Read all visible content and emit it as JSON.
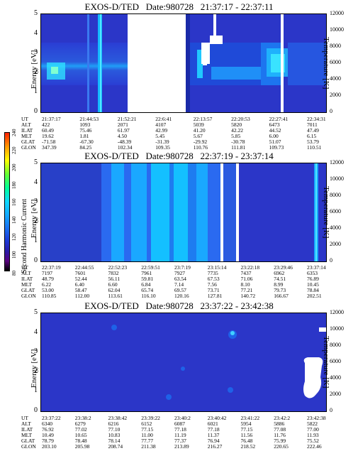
{
  "panels": [
    {
      "title": "EXOS-D/TED   Date:980728   21:37:17 - 22:37:11",
      "ylabel_left": "Energy [eV]",
      "ylabel_right": "Temperature [K]",
      "yticks_left": [
        "5",
        "4",
        "3",
        "2",
        "1",
        "0"
      ],
      "yticks_right": [
        "12000",
        "10000",
        "8000",
        "6000",
        "4000",
        "2000",
        "0"
      ],
      "orbit_rows": [
        "UT",
        "ALT",
        "ILAT",
        "MLT",
        "GLAT",
        "GLON"
      ],
      "orbit_cols": [
        [
          "21:37:17",
          "422",
          "60.49",
          "19.62",
          "-71.58",
          "347.39"
        ],
        [
          "21:44:53",
          "1093",
          "75.46",
          "1.81",
          "-67.30",
          "84.25"
        ],
        [
          "21:52:21",
          "2071",
          "61.97",
          "4.50",
          "-48.39",
          "102.34"
        ],
        [
          "22:6:41",
          "4107",
          "42.99",
          "5.45",
          "-31.39",
          "109.35"
        ],
        [
          "22:13:57",
          "5039",
          "41.20",
          "5.67",
          "-29.92",
          "110.76"
        ],
        [
          "22:20:53",
          "5820",
          "42.22",
          "5.85",
          "-30.78",
          "111.81"
        ],
        [
          "22:27:41",
          "6473",
          "44.52",
          "6.00",
          "51.07",
          "109.73"
        ],
        [
          "22:34:31",
          "7011",
          "47.49",
          "6.15",
          "53.79",
          "110.51"
        ]
      ]
    },
    {
      "title": "EXOS-D/TED   Date:980728   22:37:19 - 23:37:14",
      "ylabel_left": "Energy [eV]",
      "ylabel_right": "Temperature [K]",
      "yticks_left": [
        "5",
        "4",
        "3",
        "2",
        "1",
        "0"
      ],
      "yticks_right": [
        "12000",
        "10000",
        "8000",
        "6000",
        "4000",
        "2000",
        "0"
      ],
      "orbit_rows": [
        "UT",
        "ALT",
        "ILAT",
        "MLT",
        "GLAT",
        "GLON"
      ],
      "orbit_cols": [
        [
          "22:37:19",
          "7197",
          "48.79",
          "6.22",
          "53.00",
          "110.85"
        ],
        [
          "22:44:55",
          "7601",
          "52.44",
          "6.40",
          "58.47",
          "112.00"
        ],
        [
          "22:52:23",
          "7832",
          "56.11",
          "6.60",
          "62.04",
          "113.61"
        ],
        [
          "22:59:51",
          "7961",
          "59.81",
          "6.84",
          "65.74",
          "116.10"
        ],
        [
          "23:7:19",
          "7927",
          "63.54",
          "7.14",
          "69.57",
          "120.16"
        ],
        [
          "23:15:14",
          "7735",
          "67.53",
          "7.56",
          "73.71",
          "127.81"
        ],
        [
          "23:22:18",
          "7437",
          "71.06",
          "8.10",
          "77.21",
          "140.72"
        ],
        [
          "23:29:46",
          "6962",
          "74.51",
          "8.99",
          "79.73",
          "166.67"
        ],
        [
          "23:37:14",
          "6353",
          "76.89",
          "10.45",
          "78.84",
          "202.51"
        ]
      ]
    },
    {
      "title": "EXOS-D/TED   Date:980728   23:37:22 - 23:42:38",
      "ylabel_left": "Energy [eV]",
      "ylabel_right": "Temperature [K]",
      "yticks_left": [
        "5",
        "4",
        "3",
        "2",
        "1",
        "0"
      ],
      "yticks_right": [
        "12000",
        "10000",
        "8000",
        "6000",
        "4000",
        "2000",
        "0"
      ],
      "orbit_rows": [
        "UT",
        "ALT",
        "ILAT",
        "MLT",
        "GLAT",
        "GLON"
      ],
      "orbit_cols": [
        [
          "23:37:22",
          "6340",
          "76.92",
          "10.49",
          "78.79",
          "203.10"
        ],
        [
          "23:38:2",
          "6279",
          "77.02",
          "10.65",
          "78.48",
          "205.98"
        ],
        [
          "23:38:42",
          "6216",
          "77.10",
          "10.83",
          "78.14",
          "208.74"
        ],
        [
          "23:39:22",
          "6152",
          "77.15",
          "11.00",
          "77.77",
          "211.38"
        ],
        [
          "23:40:2",
          "6087",
          "77.18",
          "11.19",
          "77.37",
          "213.89"
        ],
        [
          "23:40:42",
          "6021",
          "77.18",
          "11.37",
          "76.94",
          "216.27"
        ],
        [
          "23:41:22",
          "5954",
          "77.15",
          "11.56",
          "76.48",
          "218.52"
        ],
        [
          "23:42:2",
          "5886",
          "77.08",
          "11.76",
          "75.99",
          "220.65"
        ],
        [
          "23:42:38",
          "5822",
          "77.00",
          "11.93",
          "75.52",
          "222.46"
        ]
      ]
    }
  ],
  "colorbar": {
    "label": "Second Harmonic Current",
    "ticks": [
      "240",
      "220",
      "200",
      "180",
      "160",
      "140",
      "120",
      "100",
      "80"
    ],
    "colors": [
      "#000000",
      "#5a0080",
      "#2a1aa8",
      "#1c3bd8",
      "#1a6cf0",
      "#14a8ff",
      "#10d8ff",
      "#00ff99",
      "#66ff33",
      "#ffff00",
      "#ff9900",
      "#ff2200"
    ]
  },
  "chart_data": [
    {
      "type": "heatmap",
      "title": "EXOS-D/TED   Date:980728   21:37:17 - 22:37:11",
      "xlabel": "UT",
      "ylabel": "Energy [eV]",
      "ylabel_right": "Temperature [K]",
      "ylim": [
        0,
        5
      ],
      "ylim_right": [
        0,
        12000
      ],
      "x_ticks": [
        "21:37:17",
        "21:44:53",
        "21:52:21",
        "22:6:41",
        "22:13:57",
        "22:20:53",
        "22:27:41",
        "22:34:31"
      ],
      "features": {
        "data_gap_ut": [
          "21:52:21",
          "22:6:41"
        ],
        "enhanced_energy_eV": [
          1.5,
          2.5
        ]
      }
    },
    {
      "type": "heatmap",
      "title": "EXOS-D/TED   Date:980728   22:37:19 - 23:37:14",
      "xlabel": "UT",
      "ylabel": "Energy [eV]",
      "ylabel_right": "Temperature [K]",
      "ylim": [
        0,
        5
      ],
      "ylim_right": [
        0,
        12000
      ],
      "x_ticks": [
        "22:37:19",
        "22:44:55",
        "22:52:23",
        "22:59:51",
        "23:7:19",
        "23:15:14",
        "23:22:18",
        "23:29:46",
        "23:37:14"
      ]
    },
    {
      "type": "heatmap",
      "title": "EXOS-D/TED   Date:980728   23:37:22 - 23:42:38",
      "xlabel": "UT",
      "ylabel": "Energy [eV]",
      "ylabel_right": "Temperature [K]",
      "ylim": [
        0,
        5
      ],
      "ylim_right": [
        0,
        12000
      ],
      "x_ticks": [
        "23:37:22",
        "23:38:2",
        "23:38:42",
        "23:39:22",
        "23:40:2",
        "23:40:42",
        "23:41:22",
        "23:42:2",
        "23:42:38"
      ]
    }
  ]
}
